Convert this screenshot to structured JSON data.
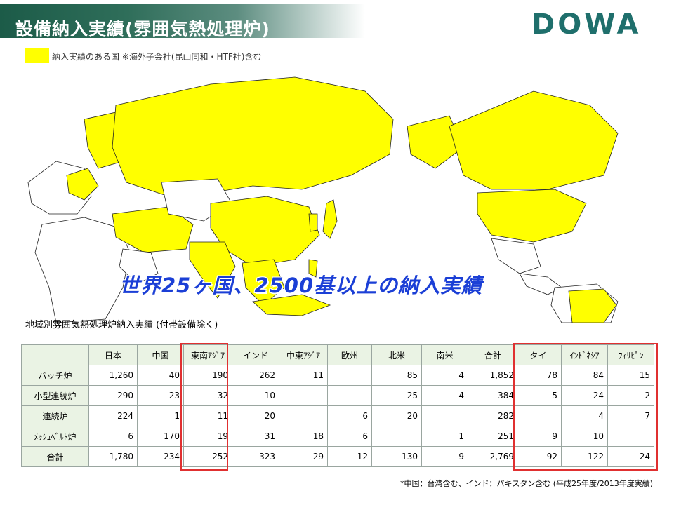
{
  "header": {
    "title": "設備納入実績(雰囲気熱処理炉)",
    "logo": "DOWA"
  },
  "legend": {
    "label": "納入実績のある国 ※海外子会社(昆山同和・HTF社)含む",
    "color": "#ffff00"
  },
  "map": {
    "headline": "世界25ヶ国、2500基以上の納入実績",
    "highlight_color": "#ffff00"
  },
  "table_caption": "地域別雰囲気熱処理炉納入実績 (付帯設備除く)",
  "main_table": {
    "columns": [
      "日本",
      "中国",
      "東南ｱｼﾞｱ",
      "インド",
      "中東ｱｼﾞｱ",
      "欧州",
      "北米",
      "南米",
      "合計"
    ],
    "rows": [
      {
        "label": "バッチ炉",
        "values": [
          "1,260",
          "40",
          "190",
          "262",
          "11",
          "",
          "85",
          "4",
          "1,852"
        ]
      },
      {
        "label": "小型連続炉",
        "values": [
          "290",
          "23",
          "32",
          "10",
          "",
          "",
          "25",
          "4",
          "384"
        ]
      },
      {
        "label": "連続炉",
        "values": [
          "224",
          "1",
          "11",
          "20",
          "",
          "6",
          "20",
          "",
          "282"
        ]
      },
      {
        "label": "ﾒｯｼｭﾍﾞﾙﾄ炉",
        "values": [
          "6",
          "170",
          "19",
          "31",
          "18",
          "6",
          "",
          "1",
          "251"
        ]
      },
      {
        "label": "合計",
        "values": [
          "1,780",
          "234",
          "252",
          "323",
          "29",
          "12",
          "130",
          "9",
          "2,769"
        ]
      }
    ]
  },
  "side_table": {
    "columns": [
      "タイ",
      "ｲﾝﾄﾞﾈｼｱ",
      "ﾌｨﾘﾋﾟﾝ"
    ],
    "rows": [
      [
        "78",
        "84",
        "15"
      ],
      [
        "5",
        "24",
        "2"
      ],
      [
        "",
        "4",
        "7"
      ],
      [
        "9",
        "10",
        ""
      ],
      [
        "92",
        "122",
        "24"
      ]
    ]
  },
  "footnote": "*中国：台湾含む、インド：パキスタン含む (平成25年度/2013年度実績)"
}
